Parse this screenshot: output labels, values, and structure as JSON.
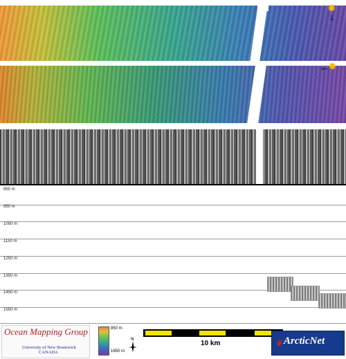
{
  "depth_profile": {
    "depth_labels": [
      "850 m",
      "950 m",
      "1050 m",
      "1150 m",
      "1250 m",
      "1350 m",
      "1450 m",
      "1550 m"
    ]
  },
  "footer": {
    "group_name": "Ocean Mapping Group",
    "university": "University of New Brunswick",
    "country": "CANADA",
    "legend_min": "850 m",
    "legend_max": "1650 m",
    "scale_label": "10 km",
    "partner_logo": "ArcticNet"
  },
  "colors": {
    "scale_yellow": "#f2e600",
    "omg_red": "#b22020",
    "arctic_blue": "#163a8c"
  },
  "icons": [
    "sun-marker-icon",
    "arrow-down-icon",
    "arrow-left-icon",
    "north-arrow-icon",
    "maple-leaf-icon"
  ]
}
